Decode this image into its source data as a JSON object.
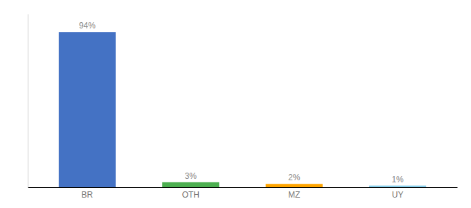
{
  "chart_data": {
    "type": "bar",
    "categories": [
      "BR",
      "OTH",
      "MZ",
      "UY"
    ],
    "values": [
      94,
      3,
      2,
      1
    ],
    "value_labels": [
      "94%",
      "3%",
      "2%",
      "1%"
    ],
    "colors": [
      "#4472C4",
      "#4CAF50",
      "#FFA500",
      "#87CEEB"
    ],
    "ylim": [
      0,
      105
    ],
    "data_labels": true,
    "tick_labels": "x"
  }
}
